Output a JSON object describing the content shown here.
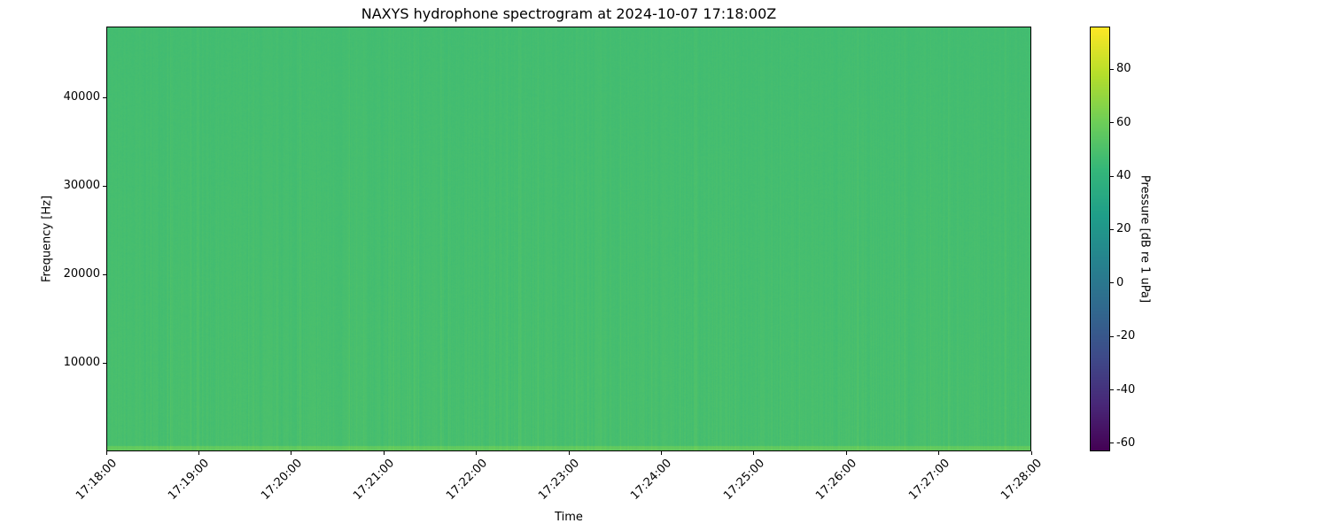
{
  "chart_data": {
    "type": "heatmap",
    "title": "NAXYS hydrophone spectrogram at 2024-10-07 17:18:00Z",
    "xlabel": "Time",
    "ylabel": "Frequency [Hz]",
    "x_tick_labels": [
      "17:18:00",
      "17:19:00",
      "17:20:00",
      "17:21:00",
      "17:22:00",
      "17:23:00",
      "17:24:00",
      "17:25:00",
      "17:26:00",
      "17:27:00",
      "17:28:00"
    ],
    "xlim": [
      "17:18:00",
      "17:28:00"
    ],
    "y_ticks": [
      10000,
      20000,
      30000,
      40000
    ],
    "ylim": [
      0,
      48000
    ],
    "colorbar": {
      "label": "Pressure [dB re 1 uPa]",
      "colormap": "viridis",
      "ticks": [
        -60,
        -40,
        -20,
        0,
        20,
        40,
        60,
        80
      ],
      "range": [
        -63,
        96
      ]
    },
    "typical_level_db": 50,
    "grid": false
  }
}
